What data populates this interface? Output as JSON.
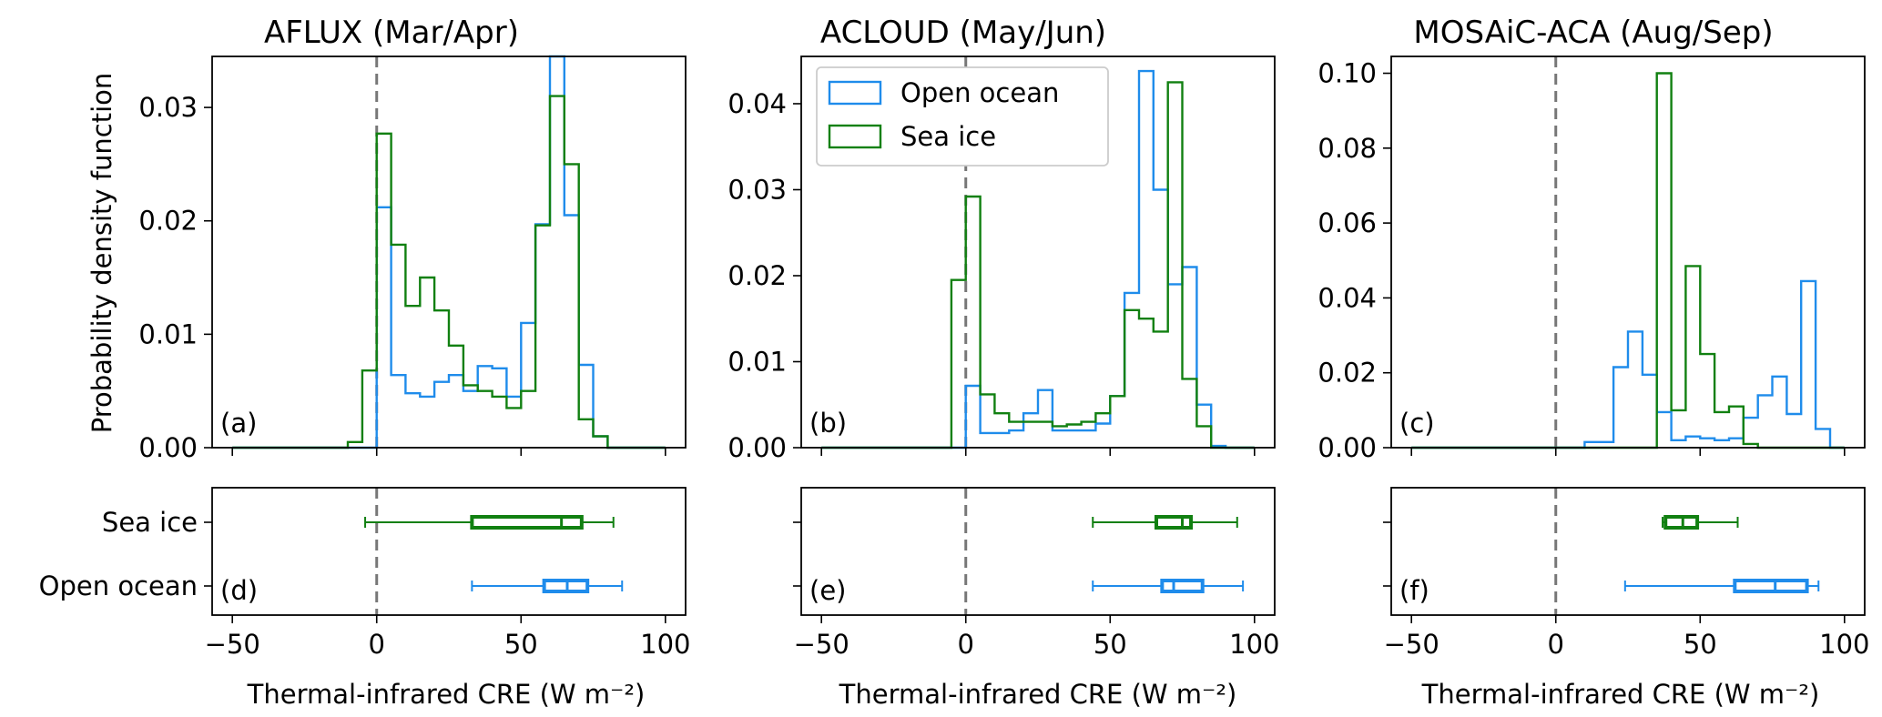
{
  "chart_data": [
    {
      "type": "histogram",
      "title": "AFLUX (Mar/Apr)",
      "panel_hist": "(a)",
      "panel_box": "(d)",
      "xlabel": "Thermal-infrared CRE (W m⁻²)",
      "ylabel": "Probability density function",
      "xlim": [
        -57,
        107
      ],
      "ylim": [
        0,
        0.0345
      ],
      "yticks": [
        0.0,
        0.01,
        0.02,
        0.03
      ],
      "ytick_labels": [
        "0.00",
        "0.01",
        "0.02",
        "0.03"
      ],
      "xticks": [
        -50,
        0,
        50,
        100
      ],
      "xtick_labels": [
        "−50",
        "0",
        "50",
        "100"
      ],
      "bin_edges": [
        -50,
        -45,
        -40,
        -35,
        -30,
        -25,
        -20,
        -15,
        -10,
        -5,
        0,
        5,
        10,
        15,
        20,
        25,
        30,
        35,
        40,
        45,
        50,
        55,
        60,
        65,
        70,
        75,
        80,
        85,
        90,
        95,
        100
      ],
      "series": [
        {
          "name": "Open ocean",
          "color": "#1f8ceb",
          "values": [
            0,
            0,
            0,
            0,
            0,
            0,
            0,
            0,
            0,
            0,
            0.0212,
            0.0064,
            0.0048,
            0.0045,
            0.0058,
            0.0064,
            0.005,
            0.0072,
            0.007,
            0.0045,
            0.011,
            0.0197,
            0.0345,
            0.0205,
            0.0073,
            0.001,
            0,
            0,
            0,
            0
          ]
        },
        {
          "name": "Sea ice",
          "color": "#118011",
          "values": [
            0,
            0,
            0,
            0,
            0,
            0,
            0,
            0,
            0.0005,
            0.0068,
            0.0277,
            0.0179,
            0.0125,
            0.015,
            0.0121,
            0.009,
            0.0055,
            0.005,
            0.0045,
            0.0035,
            0.005,
            0.0196,
            0.031,
            0.025,
            0.0025,
            0.001,
            0,
            0,
            0,
            0
          ]
        }
      ],
      "box_categories": [
        "Sea ice",
        "Open ocean"
      ],
      "boxes": [
        {
          "name": "Sea ice",
          "color": "#118011",
          "whisker_low": -4,
          "q1": 33,
          "median": 64,
          "q3": 71,
          "whisker_high": 82
        },
        {
          "name": "Open ocean",
          "color": "#1f8ceb",
          "whisker_low": 33,
          "q1": 58,
          "median": 66,
          "q3": 73,
          "whisker_high": 85
        }
      ],
      "zero_line": 0
    },
    {
      "type": "histogram",
      "title": "ACLOUD (May/Jun)",
      "panel_hist": "(b)",
      "panel_box": "(e)",
      "xlabel": "Thermal-infrared CRE (W m⁻²)",
      "ylabel": "",
      "xlim": [
        -57,
        107
      ],
      "ylim": [
        0,
        0.0455
      ],
      "yticks": [
        0.0,
        0.01,
        0.02,
        0.03,
        0.04
      ],
      "ytick_labels": [
        "0.00",
        "0.01",
        "0.02",
        "0.03",
        "0.04"
      ],
      "xticks": [
        -50,
        0,
        50,
        100
      ],
      "xtick_labels": [
        "−50",
        "0",
        "50",
        "100"
      ],
      "bin_edges": [
        -50,
        -45,
        -40,
        -35,
        -30,
        -25,
        -20,
        -15,
        -10,
        -5,
        0,
        5,
        10,
        15,
        20,
        25,
        30,
        35,
        40,
        45,
        50,
        55,
        60,
        65,
        70,
        75,
        80,
        85,
        90,
        95,
        100
      ],
      "series": [
        {
          "name": "Open ocean",
          "color": "#1f8ceb",
          "values": [
            0,
            0,
            0,
            0,
            0,
            0,
            0,
            0,
            0,
            0,
            0.0072,
            0.0017,
            0.0017,
            0.002,
            0.004,
            0.0067,
            0.002,
            0.002,
            0.002,
            0.0028,
            0.006,
            0.018,
            0.0438,
            0.03,
            0.019,
            0.021,
            0.005,
            0.0002,
            0,
            0
          ]
        },
        {
          "name": "Sea ice",
          "color": "#118011",
          "values": [
            0,
            0,
            0,
            0,
            0,
            0,
            0,
            0,
            0,
            0.0195,
            0.0292,
            0.0062,
            0.004,
            0.003,
            0.003,
            0.003,
            0.0025,
            0.0027,
            0.003,
            0.004,
            0.006,
            0.016,
            0.015,
            0.0135,
            0.0425,
            0.008,
            0.0025,
            0,
            0,
            0
          ]
        }
      ],
      "legend": {
        "position": "top-left",
        "entries": [
          "Open ocean",
          "Sea ice"
        ]
      },
      "box_categories": [
        "Sea ice",
        "Open ocean"
      ],
      "boxes": [
        {
          "name": "Sea ice",
          "color": "#118011",
          "whisker_low": 44,
          "q1": 66,
          "median": 75,
          "q3": 78,
          "whisker_high": 94
        },
        {
          "name": "Open ocean",
          "color": "#1f8ceb",
          "whisker_low": 44,
          "q1": 68,
          "median": 72,
          "q3": 82,
          "whisker_high": 96
        }
      ],
      "zero_line": 0
    },
    {
      "type": "histogram",
      "title": "MOSAiC-ACA (Aug/Sep)",
      "panel_hist": "(c)",
      "panel_box": "(f)",
      "xlabel": "Thermal-infrared CRE (W m⁻²)",
      "ylabel": "",
      "xlim": [
        -57,
        107
      ],
      "ylim": [
        0,
        0.1045
      ],
      "yticks": [
        0.0,
        0.02,
        0.04,
        0.06,
        0.08,
        0.1
      ],
      "ytick_labels": [
        "0.00",
        "0.02",
        "0.04",
        "0.06",
        "0.08",
        "0.10"
      ],
      "xticks": [
        -50,
        0,
        50,
        100
      ],
      "xtick_labels": [
        "−50",
        "0",
        "50",
        "100"
      ],
      "bin_edges": [
        -50,
        -45,
        -40,
        -35,
        -30,
        -25,
        -20,
        -15,
        -10,
        -5,
        0,
        5,
        10,
        15,
        20,
        25,
        30,
        35,
        40,
        45,
        50,
        55,
        60,
        65,
        70,
        75,
        80,
        85,
        90,
        95,
        100
      ],
      "series": [
        {
          "name": "Open ocean",
          "color": "#1f8ceb",
          "values": [
            0,
            0,
            0,
            0,
            0,
            0,
            0,
            0,
            0,
            0,
            0,
            0,
            0.0015,
            0.0015,
            0.0215,
            0.031,
            0.0195,
            0.0095,
            0.002,
            0.003,
            0.0025,
            0.002,
            0.0025,
            0.008,
            0.014,
            0.019,
            0.009,
            0.0445,
            0.005,
            0
          ]
        },
        {
          "name": "Sea ice",
          "color": "#118011",
          "values": [
            0,
            0,
            0,
            0,
            0,
            0,
            0,
            0,
            0,
            0,
            0,
            0,
            0,
            0,
            0,
            0,
            0,
            0.1,
            0.01,
            0.0485,
            0.025,
            0.0095,
            0.011,
            0.001,
            0,
            0,
            0,
            0,
            0,
            0
          ]
        }
      ],
      "box_categories": [
        "Sea ice",
        "Open ocean"
      ],
      "boxes": [
        {
          "name": "Sea ice",
          "color": "#118011",
          "whisker_low": 37,
          "q1": 38,
          "median": 44,
          "q3": 49,
          "whisker_high": 63
        },
        {
          "name": "Open ocean",
          "color": "#1f8ceb",
          "whisker_low": 24,
          "q1": 62,
          "median": 76,
          "q3": 87,
          "whisker_high": 91
        }
      ],
      "zero_line": 0
    }
  ]
}
